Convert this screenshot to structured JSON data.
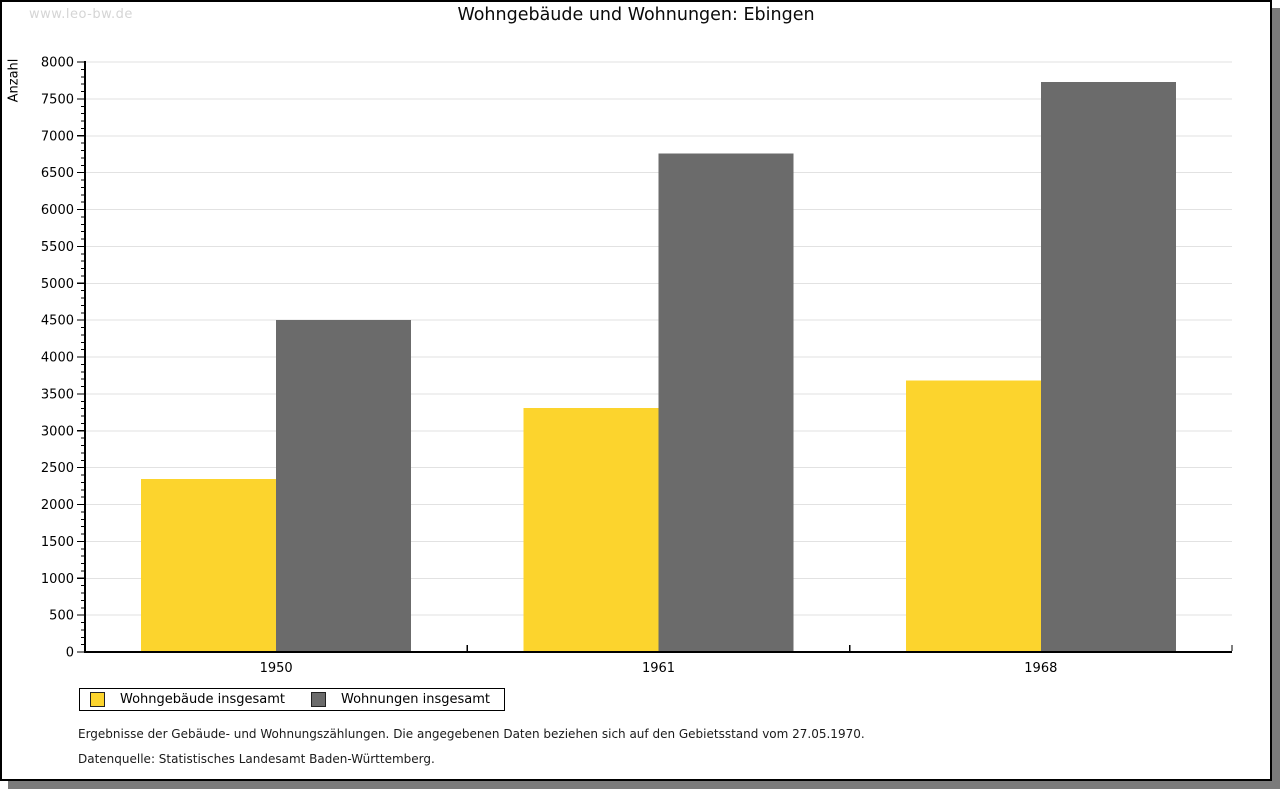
{
  "watermark": "www.leo-bw.de",
  "chart_data": {
    "type": "bar",
    "title": "Wohngebäude und Wohnungen: Ebingen",
    "xlabel": "",
    "ylabel": "Anzahl",
    "categories": [
      "1950",
      "1961",
      "1968"
    ],
    "series": [
      {
        "name": "Wohngebäude insgesamt",
        "color": "#FCD42D",
        "values": [
          2345,
          3310,
          3680
        ]
      },
      {
        "name": "Wohnungen insgesamt",
        "color": "#6B6B6B",
        "values": [
          4500,
          6760,
          7730
        ]
      }
    ],
    "ylim": [
      0,
      8000
    ],
    "y_major_step": 500,
    "y_minor_step": 100,
    "grid": "horizontal",
    "gridline_color": "#e2e2e2",
    "axis_color": "#000000",
    "legend_position": "bottom-left"
  },
  "footnotes": [
    "Ergebnisse der Gebäude- und Wohnungszählungen. Die angegebenen Daten beziehen sich auf den Gebietsstand vom 27.05.1970.",
    "Datenquelle: Statistisches Landesamt Baden-Württemberg."
  ]
}
